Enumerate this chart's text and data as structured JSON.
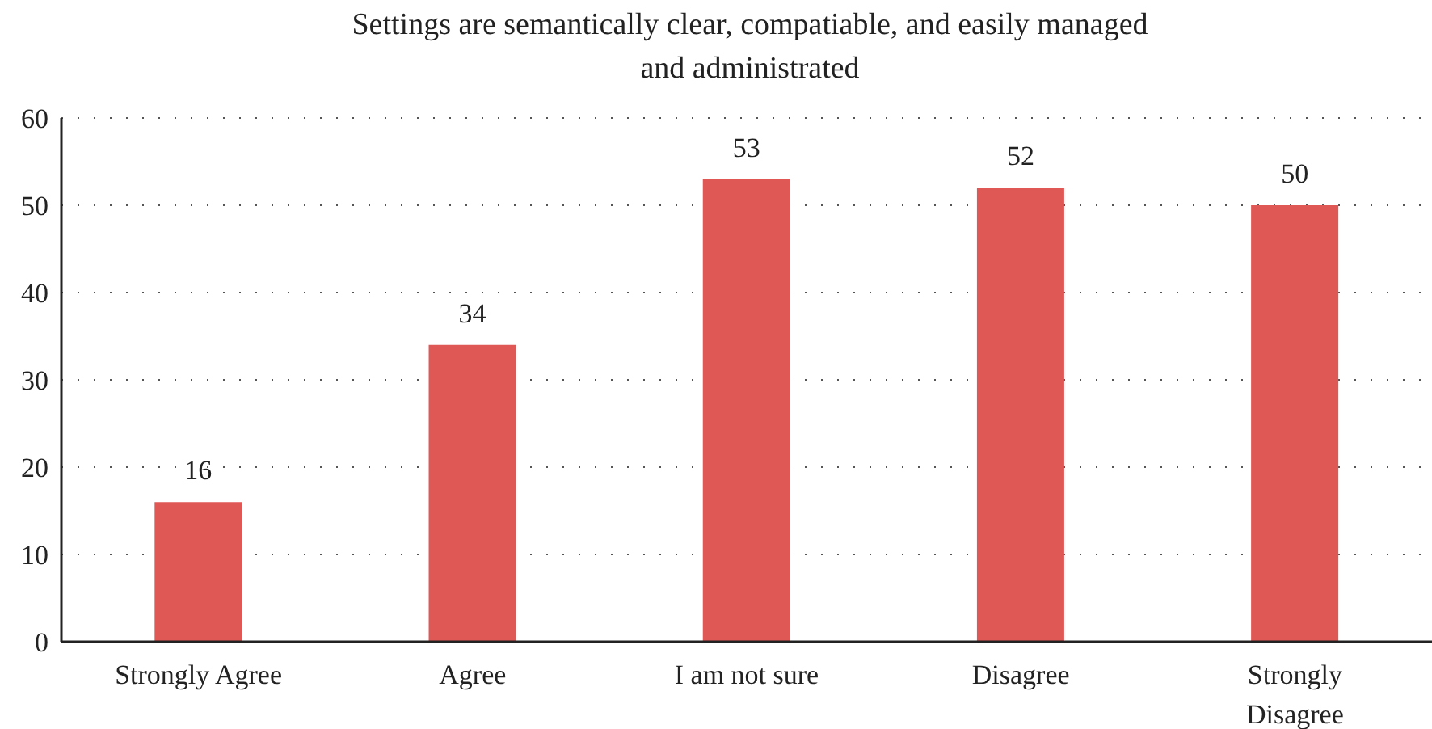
{
  "chart_data": {
    "type": "bar",
    "title": "Settings are semantically clear, compatiable, and easily managed and administrated",
    "categories": [
      "Strongly Agree",
      "Agree",
      "I am not sure",
      "Disagree",
      "Strongly Disagree"
    ],
    "values": [
      16,
      34,
      53,
      52,
      50
    ],
    "color": "#df5856",
    "ylim": [
      0,
      60
    ],
    "yticks": [
      0,
      10,
      20,
      30,
      40,
      50,
      60
    ],
    "grid": "y",
    "data_labels": true
  }
}
